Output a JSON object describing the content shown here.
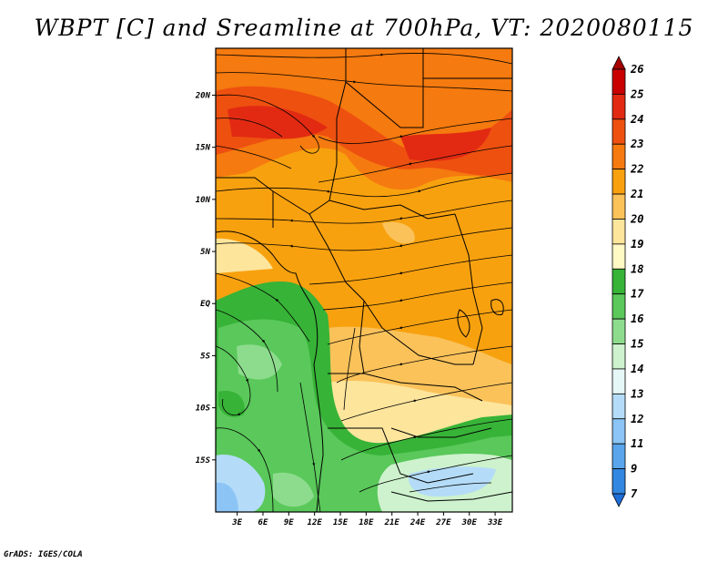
{
  "title": "WBPT [C] and Sreamline at 700hPa, VT: 2020080115",
  "credit": "GrADS: IGES/COLA",
  "map": {
    "lat_labels": [
      {
        "label": "20N",
        "lat": 20
      },
      {
        "label": "15N",
        "lat": 15
      },
      {
        "label": "10N",
        "lat": 10
      },
      {
        "label": "5N",
        "lat": 5
      },
      {
        "label": "EQ",
        "lat": 0
      },
      {
        "label": "5S",
        "lat": -5
      },
      {
        "label": "10S",
        "lat": -10
      },
      {
        "label": "15S",
        "lat": -15
      }
    ],
    "lon_labels": [
      {
        "label": "3E",
        "lon": 3
      },
      {
        "label": "6E",
        "lon": 6
      },
      {
        "label": "9E",
        "lon": 9
      },
      {
        "label": "12E",
        "lon": 12
      },
      {
        "label": "15E",
        "lon": 15
      },
      {
        "label": "18E",
        "lon": 18
      },
      {
        "label": "21E",
        "lon": 21
      },
      {
        "label": "24E",
        "lon": 24
      },
      {
        "label": "27E",
        "lon": 27
      },
      {
        "label": "30E",
        "lon": 30
      },
      {
        "label": "33E",
        "lon": 33
      }
    ],
    "lat_range": [
      -20,
      24.5
    ],
    "lon_range": [
      0.5,
      35
    ]
  },
  "colorbar": {
    "labels": [
      "26",
      "25",
      "24",
      "23",
      "22",
      "21",
      "20",
      "19",
      "18",
      "17",
      "16",
      "15",
      "14",
      "13",
      "12",
      "11",
      "9",
      "7"
    ],
    "colors": [
      "#a50000",
      "#c80000",
      "#e22a12",
      "#ee5010",
      "#f57a0f",
      "#f8a10f",
      "#fbc25a",
      "#fde59c",
      "#fff9c4",
      "#37b337",
      "#5ac85a",
      "#8ddc8d",
      "#cdf2cd",
      "#e6f7f7",
      "#b4dcf8",
      "#8cc4f5",
      "#5aa5eb",
      "#3287e0",
      "#1e6ed8"
    ]
  }
}
